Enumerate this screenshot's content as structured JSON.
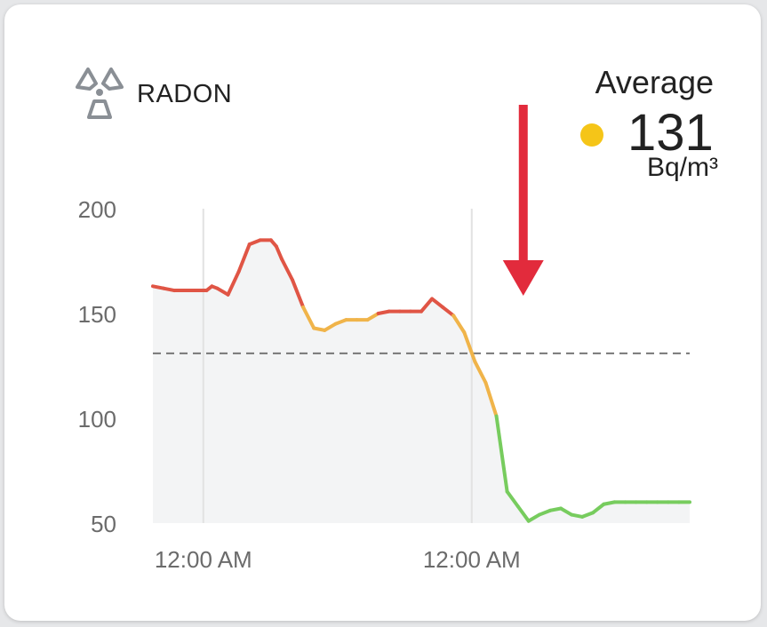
{
  "header": {
    "title": "RADON",
    "icon": "radiation-icon"
  },
  "average": {
    "label": "Average",
    "value": "131",
    "unit": "Bq/m³",
    "dot_color": "#f5c518"
  },
  "colors": {
    "high": "#e05545",
    "medium": "#f0b44a",
    "low": "#77cc5e",
    "marker_arrow": "#e22b3c",
    "reference_line": "#777777",
    "area_fill": "#f3f4f5"
  },
  "chart_data": {
    "type": "line",
    "title": "RADON",
    "ylabel": "",
    "xlabel": "",
    "ylim": [
      50,
      200
    ],
    "y_ticks": [
      50,
      100,
      150,
      200
    ],
    "x_tick_labels": [
      "12:00 AM",
      "12:00 AM"
    ],
    "x_tick_positions": [
      4.7,
      29.7
    ],
    "xlim": [
      0,
      50
    ],
    "reference_line": {
      "label": "Average",
      "value": 131
    },
    "marker_arrow_x": 34.5,
    "series": [
      {
        "x": [
          0,
          1,
          2,
          3,
          4,
          5,
          5.5,
          6,
          7,
          8,
          9,
          10,
          11,
          11.5,
          12,
          13,
          14,
          15,
          16,
          17,
          18,
          19,
          20,
          21,
          22,
          23,
          24,
          25,
          26,
          27,
          28,
          29,
          30,
          31,
          32,
          33,
          34,
          35,
          36,
          37,
          38,
          39,
          40,
          41,
          42,
          43,
          44,
          45,
          46,
          47,
          48,
          49,
          50
        ],
        "values": [
          163,
          162,
          161,
          161,
          161,
          161,
          163,
          162,
          159,
          170,
          183,
          185,
          185,
          182,
          176,
          166,
          153,
          143,
          142,
          145,
          147,
          147,
          147,
          150,
          151,
          151,
          151,
          151,
          157,
          153,
          149,
          141,
          127,
          117,
          101,
          65,
          58,
          51,
          54,
          56,
          57,
          54,
          53,
          55,
          59,
          60,
          60,
          60,
          60,
          60,
          60,
          60,
          60
        ]
      }
    ]
  }
}
